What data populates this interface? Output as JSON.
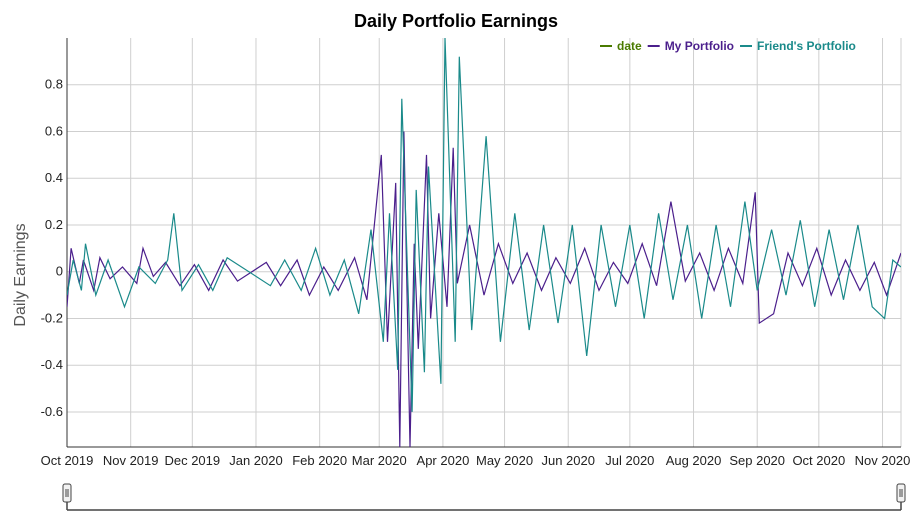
{
  "chart_data": {
    "type": "line",
    "title": "Daily Portfolio Earnings",
    "ylabel": "Daily Earnings",
    "xlabel": "",
    "ylim": [
      -0.75,
      1.0
    ],
    "yticks": [
      0.8,
      0.6,
      0.4,
      0.2,
      0,
      -0.2,
      -0.4,
      -0.6
    ],
    "xlim": [
      "2019-10-01",
      "2020-11-10"
    ],
    "x_tick_labels": [
      {
        "date": "2019-10-01",
        "label": "Oct 2019"
      },
      {
        "date": "2019-11-01",
        "label": "Nov 2019"
      },
      {
        "date": "2019-12-01",
        "label": "Dec 2019"
      },
      {
        "date": "2020-01-01",
        "label": "Jan 2020"
      },
      {
        "date": "2020-02-01",
        "label": "Feb 2020"
      },
      {
        "date": "2020-03-01",
        "label": "Mar 2020"
      },
      {
        "date": "2020-04-01",
        "label": "Apr 2020"
      },
      {
        "date": "2020-05-01",
        "label": "May 2020"
      },
      {
        "date": "2020-06-01",
        "label": "Jun 2020"
      },
      {
        "date": "2020-07-01",
        "label": "Jul 2020"
      },
      {
        "date": "2020-08-01",
        "label": "Aug 2020"
      },
      {
        "date": "2020-09-01",
        "label": "Sep 2020"
      },
      {
        "date": "2020-10-01",
        "label": "Oct 2020"
      },
      {
        "date": "2020-11-01",
        "label": "Nov 2020"
      }
    ],
    "grid": true,
    "legend_position": "top-right",
    "legend": [
      {
        "name": "date",
        "color": "#4a7a00"
      },
      {
        "name": "My Portfolio",
        "color": "#4b1f8c"
      },
      {
        "name": "Friend's Portfolio",
        "color": "#1a8a8a"
      }
    ],
    "series": [
      {
        "name": "My Portfolio",
        "color": "#4b1f8c",
        "points": [
          [
            "2019-10-01",
            -0.15
          ],
          [
            "2019-10-03",
            0.1
          ],
          [
            "2019-10-07",
            -0.05
          ],
          [
            "2019-10-09",
            0.05
          ],
          [
            "2019-10-14",
            -0.08
          ],
          [
            "2019-10-17",
            0.06
          ],
          [
            "2019-10-22",
            -0.03
          ],
          [
            "2019-10-28",
            0.02
          ],
          [
            "2019-11-04",
            -0.05
          ],
          [
            "2019-11-07",
            0.1
          ],
          [
            "2019-11-12",
            -0.02
          ],
          [
            "2019-11-18",
            0.04
          ],
          [
            "2019-11-25",
            -0.06
          ],
          [
            "2019-12-02",
            0.03
          ],
          [
            "2019-12-09",
            -0.08
          ],
          [
            "2019-12-16",
            0.05
          ],
          [
            "2019-12-23",
            -0.04
          ],
          [
            "2020-01-06",
            0.04
          ],
          [
            "2020-01-13",
            -0.06
          ],
          [
            "2020-01-21",
            0.05
          ],
          [
            "2020-01-27",
            -0.1
          ],
          [
            "2020-02-03",
            0.02
          ],
          [
            "2020-02-10",
            -0.08
          ],
          [
            "2020-02-18",
            0.06
          ],
          [
            "2020-02-24",
            -0.12
          ],
          [
            "2020-03-02",
            0.5
          ],
          [
            "2020-03-05",
            -0.3
          ],
          [
            "2020-03-09",
            0.38
          ],
          [
            "2020-03-11",
            -0.75
          ],
          [
            "2020-03-13",
            0.6
          ],
          [
            "2020-03-16",
            -0.75
          ],
          [
            "2020-03-18",
            0.12
          ],
          [
            "2020-03-20",
            -0.33
          ],
          [
            "2020-03-24",
            0.5
          ],
          [
            "2020-03-26",
            -0.2
          ],
          [
            "2020-03-30",
            0.25
          ],
          [
            "2020-04-03",
            -0.15
          ],
          [
            "2020-04-06",
            0.53
          ],
          [
            "2020-04-08",
            -0.05
          ],
          [
            "2020-04-14",
            0.2
          ],
          [
            "2020-04-21",
            -0.1
          ],
          [
            "2020-04-28",
            0.12
          ],
          [
            "2020-05-05",
            -0.05
          ],
          [
            "2020-05-12",
            0.08
          ],
          [
            "2020-05-19",
            -0.08
          ],
          [
            "2020-05-26",
            0.06
          ],
          [
            "2020-06-02",
            -0.05
          ],
          [
            "2020-06-09",
            0.1
          ],
          [
            "2020-06-16",
            -0.08
          ],
          [
            "2020-06-23",
            0.04
          ],
          [
            "2020-06-30",
            -0.05
          ],
          [
            "2020-07-07",
            0.12
          ],
          [
            "2020-07-14",
            -0.06
          ],
          [
            "2020-07-21",
            0.3
          ],
          [
            "2020-07-28",
            -0.04
          ],
          [
            "2020-08-04",
            0.08
          ],
          [
            "2020-08-11",
            -0.08
          ],
          [
            "2020-08-18",
            0.1
          ],
          [
            "2020-08-25",
            -0.05
          ],
          [
            "2020-08-31",
            0.34
          ],
          [
            "2020-09-02",
            -0.22
          ],
          [
            "2020-09-09",
            -0.18
          ],
          [
            "2020-09-16",
            0.08
          ],
          [
            "2020-09-23",
            -0.06
          ],
          [
            "2020-09-30",
            0.1
          ],
          [
            "2020-10-07",
            -0.1
          ],
          [
            "2020-10-14",
            0.05
          ],
          [
            "2020-10-21",
            -0.08
          ],
          [
            "2020-10-28",
            0.04
          ],
          [
            "2020-11-03",
            -0.1
          ],
          [
            "2020-11-10",
            0.08
          ]
        ]
      },
      {
        "name": "Friend's Portfolio",
        "color": "#1a8a8a",
        "points": [
          [
            "2019-10-01",
            -0.1
          ],
          [
            "2019-10-04",
            0.05
          ],
          [
            "2019-10-08",
            -0.08
          ],
          [
            "2019-10-10",
            0.12
          ],
          [
            "2019-10-15",
            -0.1
          ],
          [
            "2019-10-21",
            0.05
          ],
          [
            "2019-10-29",
            -0.15
          ],
          [
            "2019-11-05",
            0.02
          ],
          [
            "2019-11-13",
            -0.05
          ],
          [
            "2019-11-19",
            0.05
          ],
          [
            "2019-11-22",
            0.25
          ],
          [
            "2019-11-26",
            -0.08
          ],
          [
            "2019-12-04",
            0.03
          ],
          [
            "2019-12-11",
            -0.08
          ],
          [
            "2019-12-18",
            0.06
          ],
          [
            "2020-01-08",
            -0.06
          ],
          [
            "2020-01-15",
            0.05
          ],
          [
            "2020-01-23",
            -0.08
          ],
          [
            "2020-01-30",
            0.1
          ],
          [
            "2020-02-06",
            -0.1
          ],
          [
            "2020-02-13",
            0.05
          ],
          [
            "2020-02-20",
            -0.18
          ],
          [
            "2020-02-26",
            0.18
          ],
          [
            "2020-03-03",
            -0.3
          ],
          [
            "2020-03-06",
            0.25
          ],
          [
            "2020-03-10",
            -0.42
          ],
          [
            "2020-03-12",
            0.74
          ],
          [
            "2020-03-17",
            -0.6
          ],
          [
            "2020-03-19",
            0.35
          ],
          [
            "2020-03-23",
            -0.43
          ],
          [
            "2020-03-25",
            0.45
          ],
          [
            "2020-03-31",
            -0.48
          ],
          [
            "2020-04-02",
            1.0
          ],
          [
            "2020-04-07",
            -0.3
          ],
          [
            "2020-04-09",
            0.92
          ],
          [
            "2020-04-15",
            -0.25
          ],
          [
            "2020-04-22",
            0.58
          ],
          [
            "2020-04-29",
            -0.3
          ],
          [
            "2020-05-06",
            0.25
          ],
          [
            "2020-05-13",
            -0.25
          ],
          [
            "2020-05-20",
            0.2
          ],
          [
            "2020-05-27",
            -0.22
          ],
          [
            "2020-06-03",
            0.2
          ],
          [
            "2020-06-10",
            -0.36
          ],
          [
            "2020-06-17",
            0.2
          ],
          [
            "2020-06-24",
            -0.15
          ],
          [
            "2020-07-01",
            0.2
          ],
          [
            "2020-07-08",
            -0.2
          ],
          [
            "2020-07-15",
            0.25
          ],
          [
            "2020-07-22",
            -0.12
          ],
          [
            "2020-07-29",
            0.2
          ],
          [
            "2020-08-05",
            -0.2
          ],
          [
            "2020-08-12",
            0.2
          ],
          [
            "2020-08-19",
            -0.15
          ],
          [
            "2020-08-26",
            0.3
          ],
          [
            "2020-09-01",
            -0.08
          ],
          [
            "2020-09-08",
            0.18
          ],
          [
            "2020-09-15",
            -0.1
          ],
          [
            "2020-09-22",
            0.22
          ],
          [
            "2020-09-29",
            -0.15
          ],
          [
            "2020-10-06",
            0.18
          ],
          [
            "2020-10-13",
            -0.12
          ],
          [
            "2020-10-20",
            0.2
          ],
          [
            "2020-10-27",
            -0.15
          ],
          [
            "2020-11-02",
            -0.2
          ],
          [
            "2020-11-06",
            0.05
          ],
          [
            "2020-11-10",
            0.02
          ]
        ]
      }
    ]
  }
}
